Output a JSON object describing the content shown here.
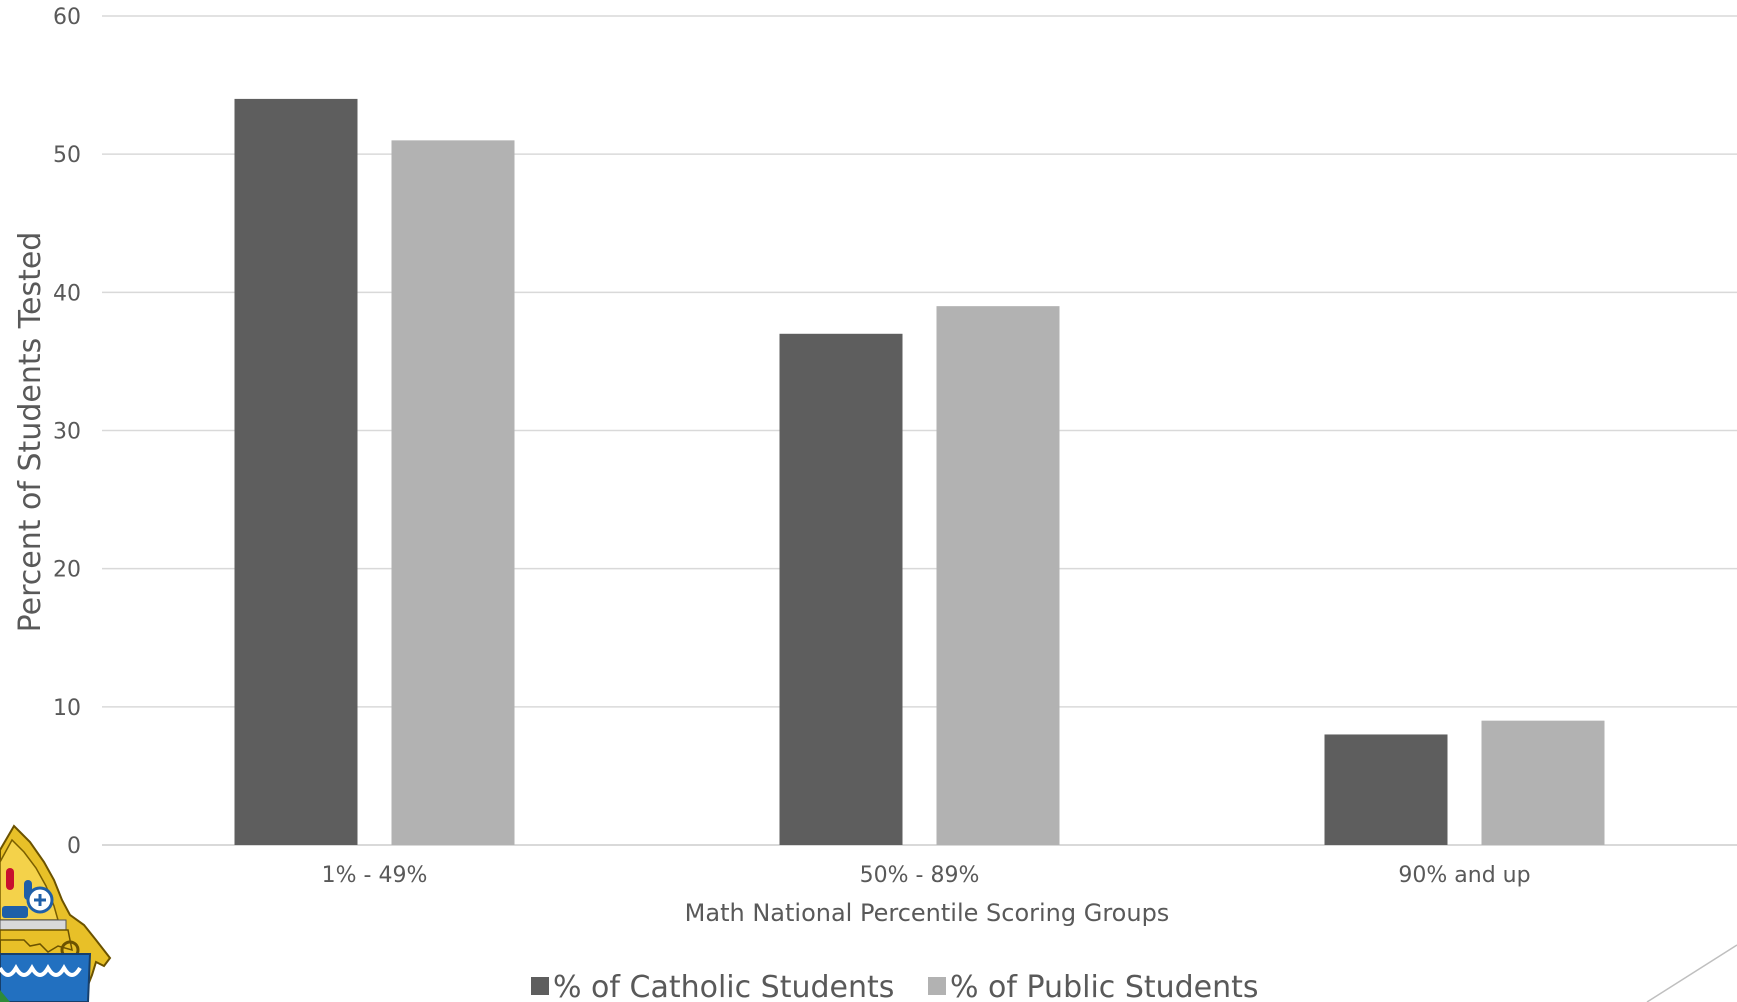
{
  "chart_data": {
    "type": "bar",
    "categories": [
      "1% - 49%",
      "50% - 89%",
      "90% and up"
    ],
    "series": [
      {
        "name": "% of Catholic Students",
        "values": [
          54,
          37,
          8
        ],
        "color": "#5e5e5e"
      },
      {
        "name": "% of Public Students",
        "values": [
          51,
          39,
          9
        ],
        "color": "#b2b2b2"
      }
    ],
    "xlabel": "Math National Percentile Scoring Groups",
    "ylabel": "Percent of Students Tested",
    "ylim": [
      0,
      60
    ],
    "yticks": [
      0,
      10,
      20,
      30,
      40,
      50,
      60
    ],
    "grid": true,
    "legend_position": "bottom",
    "gridline_color": "#d9d9d9",
    "logo": {
      "icon": "diocese-coat-of-arms-icon"
    },
    "decoration": {
      "icon": "corner-slash-line-icon"
    }
  }
}
